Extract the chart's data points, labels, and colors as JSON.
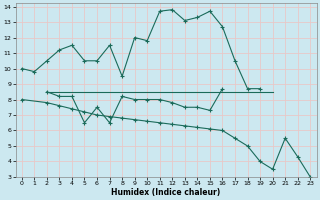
{
  "background_color": "#cce8f0",
  "grid_color": "#e8c8c8",
  "line_color": "#1a6b5a",
  "xlabel": "Humidex (Indice chaleur)",
  "xlim": [
    -0.5,
    23.5
  ],
  "ylim": [
    3,
    14.2
  ],
  "yticks": [
    3,
    4,
    5,
    6,
    7,
    8,
    9,
    10,
    11,
    12,
    13,
    14
  ],
  "xticks": [
    0,
    1,
    2,
    3,
    4,
    5,
    6,
    7,
    8,
    9,
    10,
    11,
    12,
    13,
    14,
    15,
    16,
    17,
    18,
    19,
    20,
    21,
    22,
    23
  ],
  "line1": {
    "x": [
      0,
      1,
      2,
      3,
      4,
      5,
      6,
      7,
      8,
      9,
      10,
      11,
      12,
      13,
      14,
      15,
      16,
      17,
      18,
      19
    ],
    "y": [
      10.0,
      9.8,
      10.5,
      11.2,
      11.5,
      10.5,
      10.5,
      11.5,
      9.5,
      12.0,
      11.8,
      13.7,
      13.8,
      13.1,
      13.3,
      13.7,
      12.7,
      10.5,
      8.7,
      8.7
    ]
  },
  "line2": {
    "x": [
      2,
      3,
      4,
      5,
      6,
      7,
      8,
      9,
      10,
      11,
      12,
      13,
      14,
      15,
      16
    ],
    "y": [
      8.5,
      8.2,
      8.2,
      6.5,
      7.5,
      6.5,
      8.2,
      8.0,
      8.0,
      8.0,
      7.8,
      7.5,
      7.5,
      7.3,
      8.7
    ]
  },
  "line3": {
    "x": [
      2,
      3,
      4,
      5,
      6,
      7,
      8,
      9,
      10,
      11,
      12,
      13,
      14,
      15,
      16,
      17,
      18,
      19,
      20
    ],
    "y": [
      8.5,
      8.5,
      8.5,
      8.5,
      8.5,
      8.5,
      8.5,
      8.5,
      8.5,
      8.5,
      8.5,
      8.5,
      8.5,
      8.5,
      8.5,
      8.5,
      8.5,
      8.5,
      8.5
    ]
  },
  "line4": {
    "x": [
      0,
      2,
      3,
      4,
      5,
      6,
      7,
      8,
      9,
      10,
      11,
      12,
      13,
      14,
      15,
      16,
      17,
      18,
      19,
      20,
      21,
      22,
      23
    ],
    "y": [
      8.0,
      7.8,
      7.6,
      7.4,
      7.2,
      7.0,
      6.9,
      6.8,
      6.7,
      6.6,
      6.5,
      6.4,
      6.3,
      6.2,
      6.1,
      6.0,
      5.5,
      5.0,
      4.0,
      3.5,
      5.5,
      4.3,
      3.0
    ]
  }
}
